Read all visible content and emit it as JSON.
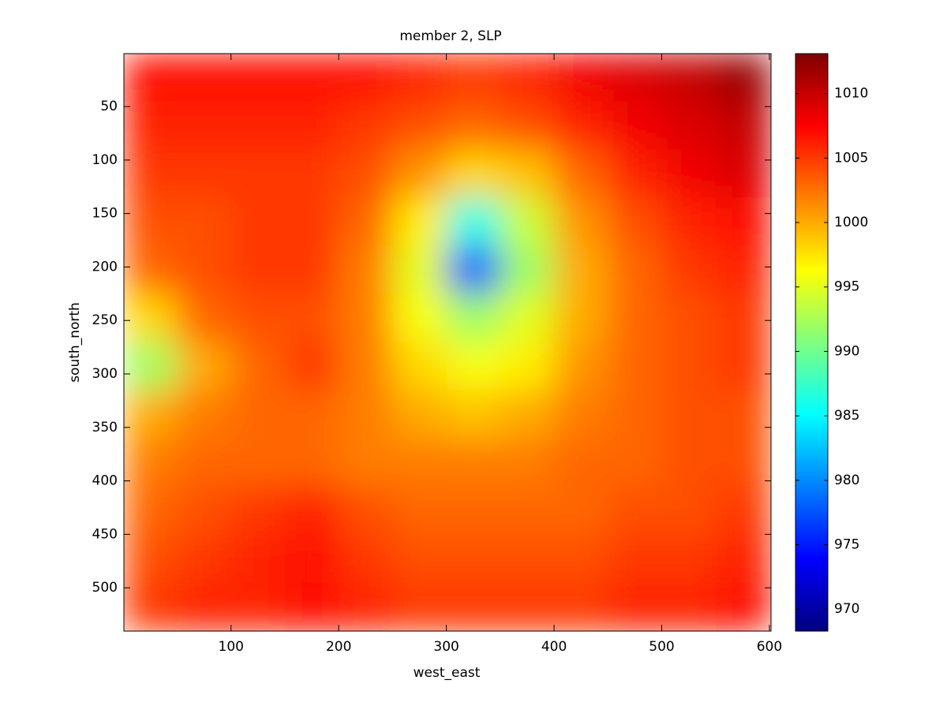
{
  "chart_data": {
    "type": "heatmap",
    "title": "member 2, SLP",
    "xlabel": "west_east",
    "ylabel": "south_north",
    "x": [
      25,
      75,
      125,
      175,
      225,
      275,
      325,
      375,
      425,
      475,
      525,
      575
    ],
    "y": [
      22.5,
      67.5,
      112.5,
      157.5,
      202.5,
      247.5,
      292.5,
      337.5,
      382.5,
      427.5,
      472.5,
      517.5
    ],
    "z": [
      [
        1007,
        1007,
        1007,
        1007,
        1007,
        1006,
        1005,
        1006,
        1008,
        1009,
        1010,
        1012
      ],
      [
        1006,
        1006,
        1006,
        1006,
        1005,
        1004,
        1003,
        1004,
        1006,
        1008,
        1009,
        1010
      ],
      [
        1005,
        1005,
        1005,
        1005,
        1004,
        1001,
        998,
        999,
        1003,
        1006,
        1008,
        1009
      ],
      [
        1004,
        1004,
        1005,
        1005,
        1003,
        997,
        986,
        994,
        1001,
        1004,
        1006,
        1007
      ],
      [
        1003,
        1004,
        1005,
        1005,
        1002,
        995,
        978,
        992,
        1000,
        1003,
        1005,
        1006
      ],
      [
        998,
        1003,
        1004,
        1004,
        1002,
        996,
        992,
        995,
        1000,
        1003,
        1004,
        1005
      ],
      [
        992,
        1000,
        1003,
        1005,
        1002,
        998,
        996,
        997,
        1001,
        1003,
        1004,
        1005
      ],
      [
        1000,
        1002,
        1003,
        1003,
        1002,
        1000,
        999,
        1000,
        1002,
        1003,
        1004,
        1004
      ],
      [
        1002,
        1003,
        1003,
        1003,
        1002,
        1002,
        1002,
        1002,
        1003,
        1003,
        1004,
        1004
      ],
      [
        1003,
        1004,
        1005,
        1006,
        1004,
        1003,
        1003,
        1003,
        1003,
        1004,
        1004,
        1005
      ],
      [
        1004,
        1005,
        1006,
        1007,
        1005,
        1004,
        1004,
        1004,
        1004,
        1005,
        1005,
        1006
      ],
      [
        1005,
        1006,
        1006,
        1007,
        1006,
        1005,
        1005,
        1005,
        1005,
        1006,
        1006,
        1007
      ]
    ],
    "xlim": [
      0.5,
      601.5
    ],
    "xticks": [
      100,
      200,
      300,
      400,
      500,
      600
    ],
    "ylim": [
      0.5,
      540.5
    ],
    "yticks": [
      50,
      100,
      150,
      200,
      250,
      300,
      350,
      400,
      450,
      500
    ],
    "y_reversed": true,
    "colormap": "jet",
    "clim": [
      968.3,
      1013.1
    ],
    "cticks": [
      970,
      975,
      980,
      985,
      990,
      995,
      1000,
      1005,
      1010
    ]
  }
}
